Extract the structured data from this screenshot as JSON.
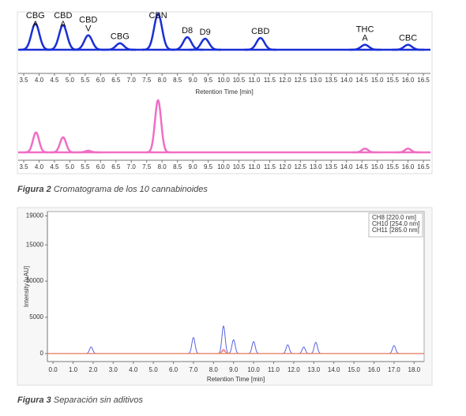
{
  "chart_data": [
    {
      "type": "line",
      "color": "#1a2fd6",
      "xlim": [
        3.32,
        16.73
      ],
      "ylim": [
        0,
        100
      ],
      "x": [
        3.88,
        4.78,
        5.6,
        6.63,
        7.87,
        8.82,
        9.4,
        11.2,
        14.6,
        16.0
      ],
      "values": [
        69,
        65,
        38,
        17,
        94,
        33,
        29,
        31,
        13,
        13
      ],
      "labels": [
        [
          "CBG",
          "A"
        ],
        [
          "CBD",
          "A"
        ],
        [
          "CBD",
          "V"
        ],
        [
          "CBG"
        ],
        [
          "CBN"
        ],
        [
          "D8"
        ],
        [
          "D9"
        ],
        [
          "CBD"
        ],
        [
          "THC",
          "A"
        ],
        [
          "CBC"
        ]
      ],
      "xlabel": "Retention Time [min]",
      "xticks": [
        3.5,
        {
          "value": 4,
          "label": "4.0"
        },
        4.5,
        {
          "value": 5,
          "label": "5.0"
        },
        5.5,
        {
          "value": 6,
          "label": "6.0"
        },
        6.5,
        {
          "value": 7,
          "label": "7.0"
        },
        7.5,
        {
          "value": 8,
          "label": "8.0"
        },
        8.5,
        {
          "value": 9,
          "label": "9.0"
        },
        9.5,
        {
          "value": 10,
          "label": "10.0"
        },
        10.5,
        {
          "value": 11,
          "label": "11.0"
        },
        11.5,
        {
          "value": 12,
          "label": "12.0"
        },
        12.5,
        {
          "value": 13,
          "label": "13.0"
        },
        13.5,
        {
          "value": 14,
          "label": "14.0"
        },
        14.5,
        {
          "value": 15,
          "label": "15.0"
        },
        15.5,
        {
          "value": 16,
          "label": "16.0"
        },
        16.5
      ]
    },
    {
      "type": "line",
      "color": "#f06ec4",
      "xlim": [
        3.32,
        16.73
      ],
      "ylim": [
        0,
        100
      ],
      "x": [
        3.9,
        4.78,
        5.6,
        7.87,
        14.6,
        16.0
      ],
      "values": [
        37,
        28,
        3,
        97,
        7,
        7
      ],
      "xticks": [
        3.5,
        {
          "value": 4,
          "label": "4.0"
        },
        4.5,
        {
          "value": 5,
          "label": "5.0"
        },
        5.5,
        {
          "value": 6,
          "label": "6.0"
        },
        6.5,
        {
          "value": 7,
          "label": "7.0"
        },
        7.5,
        {
          "value": 8,
          "label": "8.0"
        },
        8.5,
        {
          "value": 9,
          "label": "9.0"
        },
        9.5,
        {
          "value": 10,
          "label": "10.0"
        },
        10.5,
        {
          "value": 11,
          "label": "11.0"
        },
        11.5,
        {
          "value": 12,
          "label": "12.0"
        },
        12.5,
        {
          "value": 13,
          "label": "13.0"
        },
        13.5,
        {
          "value": 14,
          "label": "14.0"
        },
        14.5,
        {
          "value": 15,
          "label": "15.0"
        },
        15.5,
        {
          "value": 16,
          "label": "16.0"
        },
        16.5
      ]
    },
    {
      "type": "line",
      "xlim": [
        -0.28,
        18.5
      ],
      "ylim": [
        -1100,
        19600
      ],
      "xlabel": "Retention Time [min]",
      "ylabel": "Intensity [µAU]",
      "legend": "upper right",
      "series": [
        {
          "name": "CH8 [220.0 nm]",
          "color": "#5a63e0",
          "x": [
            1.9,
            7.0,
            8.5,
            9.0,
            10.0,
            11.7,
            12.5,
            13.1,
            17.0
          ],
          "values": [
            900,
            2200,
            3800,
            1900,
            1650,
            1200,
            900,
            1550,
            1100
          ]
        },
        {
          "name": "CH10 [254.0 nm]",
          "color": "#f07ac8",
          "x": [
            8.5
          ],
          "values": [
            600
          ]
        },
        {
          "name": "CH11 [285.0 nm]",
          "color": "#f08040",
          "x": [
            8.5
          ],
          "values": [
            400
          ]
        }
      ],
      "xticks": [
        {
          "value": 0,
          "label": "0.0"
        },
        {
          "value": 1,
          "label": "1.0"
        },
        {
          "value": 2,
          "label": "2.0"
        },
        {
          "value": 3,
          "label": "3.0"
        },
        {
          "value": 4,
          "label": "4.0"
        },
        {
          "value": 5,
          "label": "5.0"
        },
        {
          "value": 6,
          "label": "6.0"
        },
        {
          "value": 7,
          "label": "7.0"
        },
        {
          "value": 8,
          "label": "8.0"
        },
        {
          "value": 9,
          "label": "9.0"
        },
        {
          "value": 10,
          "label": "10.0"
        },
        {
          "value": 11,
          "label": "11.0"
        },
        {
          "value": 12,
          "label": "12.0"
        },
        {
          "value": 13,
          "label": "13.0"
        },
        {
          "value": 14,
          "label": "14.0"
        },
        {
          "value": 15,
          "label": "15.0"
        },
        {
          "value": 16,
          "label": "16.0"
        },
        {
          "value": 17,
          "label": "17.0"
        },
        {
          "value": 18,
          "label": "18.0"
        }
      ],
      "yticks": [
        0,
        5000,
        10000,
        15000,
        19000
      ]
    }
  ],
  "captions": [
    {
      "label": "Figura 2",
      "text": " Cromatograma de los 10 cannabinoides"
    },
    {
      "label": "Figura 3",
      "text": " Separación sin aditivos"
    }
  ]
}
